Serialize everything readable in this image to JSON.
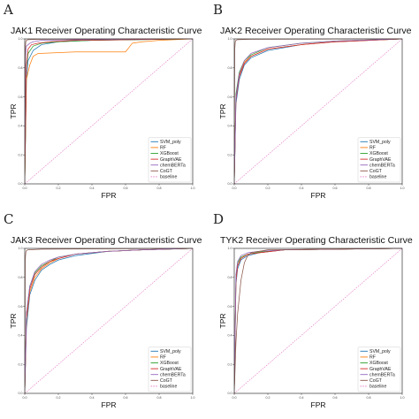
{
  "chart_data": [
    {
      "panel": "A",
      "type": "line",
      "title": "JAK1 Receiver Operating Characteristic Curve",
      "xlabel": "FPR",
      "ylabel": "TPR",
      "xlim": [
        0,
        1
      ],
      "ylim": [
        0,
        1
      ],
      "xticks": [
        "0.0",
        "0.2",
        "0.4",
        "0.6",
        "0.8",
        "1.0"
      ],
      "yticks": [
        "0.0",
        "0.2",
        "0.4",
        "0.6",
        "0.8",
        "1.0"
      ],
      "grid": false,
      "legend": "bottom-right",
      "series": [
        {
          "name": "SVM_poly",
          "color": "#1f77b4",
          "x": [
            0,
            0.01,
            0.02,
            0.05,
            0.1,
            0.2,
            0.4,
            1.0
          ],
          "y": [
            0,
            0.72,
            0.85,
            0.92,
            0.96,
            0.98,
            0.99,
            1.0
          ]
        },
        {
          "name": "RF",
          "color": "#ff7f0e",
          "x": [
            0,
            0.01,
            0.03,
            0.05,
            0.08,
            0.1,
            0.3,
            0.5,
            0.6,
            0.64,
            0.7,
            0.8,
            1.0
          ],
          "y": [
            0,
            0.72,
            0.82,
            0.88,
            0.9,
            0.9,
            0.91,
            0.91,
            0.91,
            0.97,
            0.98,
            0.99,
            1.0
          ]
        },
        {
          "name": "XGBoost",
          "color": "#2ca02c",
          "x": [
            0,
            0.01,
            0.02,
            0.05,
            0.1,
            0.2,
            0.4,
            1.0
          ],
          "y": [
            0,
            0.8,
            0.9,
            0.95,
            0.97,
            0.98,
            0.99,
            1.0
          ]
        },
        {
          "name": "GraphVAE",
          "color": "#d62728",
          "x": [
            0,
            0.01,
            0.02,
            0.04,
            0.08,
            0.15,
            0.3,
            1.0
          ],
          "y": [
            0,
            0.82,
            0.93,
            0.96,
            0.97,
            0.98,
            0.99,
            1.0
          ]
        },
        {
          "name": "chemBERTa",
          "color": "#9467bd",
          "x": [
            0,
            0.005,
            0.01,
            0.03,
            0.05,
            0.1,
            0.3,
            1.0
          ],
          "y": [
            0,
            0.88,
            0.95,
            0.97,
            0.98,
            0.99,
            0.995,
            1.0
          ]
        },
        {
          "name": "CoGT",
          "color": "#8c564b",
          "x": [
            0,
            0.003,
            0.006,
            0.01,
            0.02,
            0.1,
            1.0
          ],
          "y": [
            0,
            0.92,
            0.98,
            0.99,
            0.995,
            0.998,
            1.0
          ]
        },
        {
          "name": "baseline",
          "color": "#e377c2",
          "dashed": true,
          "x": [
            0,
            1
          ],
          "y": [
            0,
            1
          ]
        }
      ]
    },
    {
      "panel": "B",
      "type": "line",
      "title": "JAK2 Receiver Operating Characteristic Curve",
      "xlabel": "FPR",
      "ylabel": "TPR",
      "xlim": [
        0,
        1
      ],
      "ylim": [
        0,
        1
      ],
      "xticks": [
        "0.0",
        "0.2",
        "0.4",
        "0.6",
        "0.8",
        "1.0"
      ],
      "yticks": [
        "0.0",
        "0.2",
        "0.4",
        "0.6",
        "0.8",
        "1.0"
      ],
      "grid": false,
      "legend": "bottom-right",
      "series": [
        {
          "name": "SVM_poly",
          "color": "#1f77b4",
          "x": [
            0,
            0.01,
            0.03,
            0.06,
            0.1,
            0.2,
            0.4,
            0.6,
            1.0
          ],
          "y": [
            0,
            0.55,
            0.72,
            0.82,
            0.87,
            0.92,
            0.96,
            0.98,
            1.0
          ]
        },
        {
          "name": "RF",
          "color": "#ff7f0e",
          "x": [
            0,
            0.01,
            0.03,
            0.06,
            0.1,
            0.2,
            0.4,
            0.6,
            1.0
          ],
          "y": [
            0,
            0.6,
            0.75,
            0.84,
            0.88,
            0.93,
            0.96,
            0.98,
            1.0
          ]
        },
        {
          "name": "XGBoost",
          "color": "#2ca02c",
          "x": [
            0,
            0.01,
            0.03,
            0.06,
            0.1,
            0.2,
            0.4,
            0.6,
            1.0
          ],
          "y": [
            0,
            0.62,
            0.77,
            0.85,
            0.89,
            0.94,
            0.97,
            0.985,
            1.0
          ]
        },
        {
          "name": "GraphVAE",
          "color": "#d62728",
          "x": [
            0,
            0.01,
            0.03,
            0.06,
            0.1,
            0.2,
            0.4,
            0.6,
            1.0
          ],
          "y": [
            0,
            0.58,
            0.74,
            0.83,
            0.88,
            0.93,
            0.96,
            0.98,
            1.0
          ]
        },
        {
          "name": "chemBERTa",
          "color": "#9467bd",
          "x": [
            0,
            0.01,
            0.03,
            0.06,
            0.1,
            0.2,
            0.4,
            0.6,
            1.0
          ],
          "y": [
            0,
            0.6,
            0.76,
            0.85,
            0.9,
            0.94,
            0.97,
            0.985,
            1.0
          ]
        },
        {
          "name": "CoGT",
          "color": "#8c564b",
          "x": [
            0,
            0.003,
            0.006,
            0.01,
            0.02,
            0.1,
            1.0
          ],
          "y": [
            0,
            0.93,
            0.98,
            0.99,
            0.995,
            0.998,
            1.0
          ]
        },
        {
          "name": "baseline",
          "color": "#e377c2",
          "dashed": true,
          "x": [
            0,
            1
          ],
          "y": [
            0,
            1
          ]
        }
      ]
    },
    {
      "panel": "C",
      "type": "line",
      "title": "JAK3 Receiver Operating Characteristic Curve",
      "xlabel": "FPR",
      "ylabel": "TPR",
      "xlim": [
        0,
        1
      ],
      "ylim": [
        0,
        1
      ],
      "xticks": [
        "0.0",
        "0.2",
        "0.4",
        "0.6",
        "0.8",
        "1.0"
      ],
      "yticks": [
        "0.0",
        "0.2",
        "0.4",
        "0.6",
        "0.8",
        "1.0"
      ],
      "grid": false,
      "legend": "bottom-right",
      "series": [
        {
          "name": "SVM_poly",
          "color": "#1f77b4",
          "x": [
            0,
            0.01,
            0.03,
            0.06,
            0.1,
            0.15,
            0.2,
            0.3,
            0.5,
            0.7,
            1.0
          ],
          "y": [
            0,
            0.45,
            0.68,
            0.78,
            0.85,
            0.89,
            0.92,
            0.95,
            0.98,
            0.99,
            1.0
          ]
        },
        {
          "name": "RF",
          "color": "#ff7f0e",
          "x": [
            0,
            0.01,
            0.03,
            0.06,
            0.1,
            0.15,
            0.2,
            0.3,
            0.5,
            0.7,
            1.0
          ],
          "y": [
            0,
            0.5,
            0.7,
            0.8,
            0.86,
            0.9,
            0.93,
            0.96,
            0.98,
            0.99,
            1.0
          ]
        },
        {
          "name": "XGBoost",
          "color": "#2ca02c",
          "x": [
            0,
            0.01,
            0.03,
            0.06,
            0.1,
            0.15,
            0.2,
            0.3,
            0.5,
            0.7,
            1.0
          ],
          "y": [
            0,
            0.55,
            0.74,
            0.83,
            0.88,
            0.91,
            0.94,
            0.96,
            0.98,
            0.99,
            1.0
          ]
        },
        {
          "name": "GraphVAE",
          "color": "#d62728",
          "x": [
            0,
            0.01,
            0.03,
            0.06,
            0.1,
            0.15,
            0.2,
            0.3,
            0.5,
            0.7,
            1.0
          ],
          "y": [
            0,
            0.52,
            0.72,
            0.82,
            0.87,
            0.91,
            0.93,
            0.96,
            0.98,
            0.99,
            1.0
          ]
        },
        {
          "name": "chemBERTa",
          "color": "#9467bd",
          "x": [
            0,
            0.01,
            0.03,
            0.06,
            0.1,
            0.15,
            0.2,
            0.3,
            0.5,
            0.7,
            1.0
          ],
          "y": [
            0,
            0.55,
            0.74,
            0.84,
            0.89,
            0.92,
            0.94,
            0.96,
            0.98,
            0.99,
            1.0
          ]
        },
        {
          "name": "CoGT",
          "color": "#8c564b",
          "x": [
            0,
            0.003,
            0.006,
            0.01,
            0.02,
            0.1,
            1.0
          ],
          "y": [
            0,
            0.92,
            0.97,
            0.985,
            0.99,
            0.995,
            1.0
          ]
        },
        {
          "name": "baseline",
          "color": "#e377c2",
          "dashed": true,
          "x": [
            0,
            1
          ],
          "y": [
            0,
            1
          ]
        }
      ]
    },
    {
      "panel": "D",
      "type": "line",
      "title": "TYK2 Receiver Operating Characteristic Curve",
      "xlabel": "FPR",
      "ylabel": "TPR",
      "xlim": [
        0,
        1
      ],
      "ylim": [
        0,
        1
      ],
      "xticks": [
        "0.0",
        "0.2",
        "0.4",
        "0.6",
        "0.8",
        "1.0"
      ],
      "yticks": [
        "0.0",
        "0.2",
        "0.4",
        "0.6",
        "0.8",
        "1.0"
      ],
      "grid": false,
      "legend": "bottom-right",
      "series": [
        {
          "name": "SVM_poly",
          "color": "#1f77b4",
          "x": [
            0,
            0.01,
            0.02,
            0.04,
            0.08,
            0.15,
            0.3,
            1.0
          ],
          "y": [
            0,
            0.75,
            0.86,
            0.92,
            0.95,
            0.97,
            0.99,
            1.0
          ]
        },
        {
          "name": "RF",
          "color": "#ff7f0e",
          "x": [
            0,
            0.01,
            0.02,
            0.04,
            0.08,
            0.15,
            0.3,
            1.0
          ],
          "y": [
            0,
            0.78,
            0.88,
            0.93,
            0.96,
            0.97,
            0.99,
            1.0
          ]
        },
        {
          "name": "XGBoost",
          "color": "#2ca02c",
          "x": [
            0,
            0.01,
            0.02,
            0.04,
            0.08,
            0.15,
            0.3,
            1.0
          ],
          "y": [
            0,
            0.8,
            0.9,
            0.94,
            0.96,
            0.975,
            0.99,
            1.0
          ]
        },
        {
          "name": "GraphVAE",
          "color": "#d62728",
          "x": [
            0,
            0.01,
            0.02,
            0.04,
            0.08,
            0.15,
            0.3,
            1.0
          ],
          "y": [
            0,
            0.77,
            0.88,
            0.93,
            0.96,
            0.97,
            0.99,
            1.0
          ]
        },
        {
          "name": "chemBERTa",
          "color": "#9467bd",
          "x": [
            0,
            0.01,
            0.02,
            0.04,
            0.08,
            0.15,
            0.3,
            1.0
          ],
          "y": [
            0,
            0.82,
            0.91,
            0.95,
            0.97,
            0.98,
            0.99,
            1.0
          ]
        },
        {
          "name": "CoGT",
          "color": "#8c564b",
          "x": [
            0,
            0.01,
            0.02,
            0.04,
            0.06,
            0.08,
            0.1,
            0.2,
            1.0
          ],
          "y": [
            0,
            0.35,
            0.55,
            0.78,
            0.9,
            0.95,
            0.97,
            0.99,
            1.0
          ]
        },
        {
          "name": "baseline",
          "color": "#e377c2",
          "dashed": true,
          "x": [
            0,
            1
          ],
          "y": [
            0,
            1
          ]
        }
      ]
    }
  ]
}
